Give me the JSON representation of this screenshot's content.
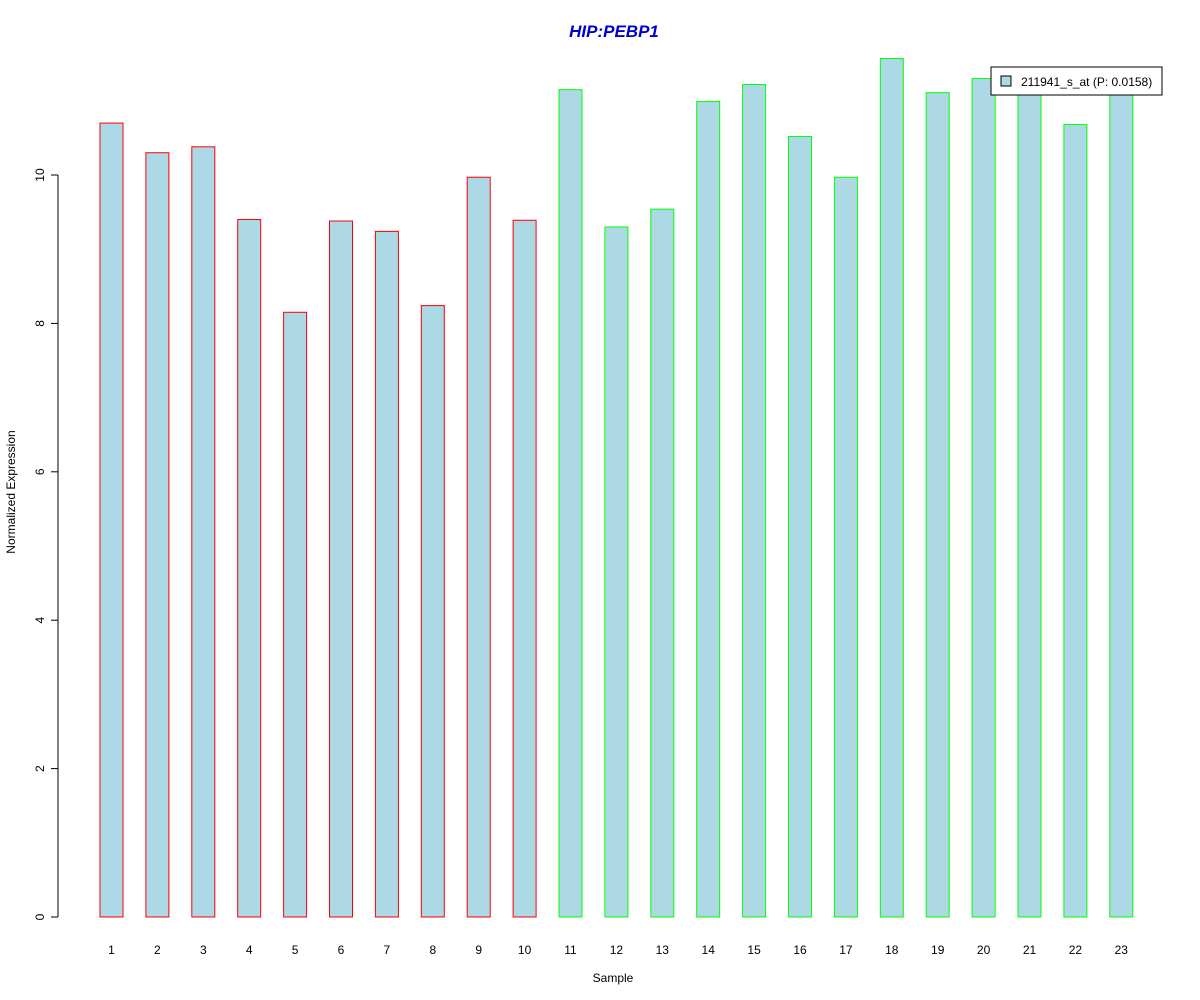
{
  "chart_data": {
    "type": "bar",
    "title": "HIP:PEBP1",
    "xlabel": "Sample",
    "ylabel": "Normalized Expression",
    "ylim": [
      0,
      11.6
    ],
    "yticks": [
      0,
      2,
      4,
      6,
      8,
      10
    ],
    "categories": [
      "1",
      "2",
      "3",
      "4",
      "5",
      "6",
      "7",
      "8",
      "9",
      "10",
      "11",
      "12",
      "13",
      "14",
      "15",
      "16",
      "17",
      "18",
      "19",
      "20",
      "21",
      "22",
      "23"
    ],
    "series": [
      {
        "name": "211941_s_at (P: 0.0158)",
        "values": [
          10.7,
          10.3,
          10.38,
          9.4,
          8.15,
          9.38,
          9.24,
          8.24,
          9.97,
          9.39,
          11.15,
          9.3,
          9.54,
          10.99,
          11.22,
          10.52,
          9.97,
          11.57,
          11.11,
          11.3,
          11.1,
          10.68,
          11.13
        ]
      }
    ],
    "fill_color": "#add8e6",
    "group_border_colors": [
      "#ff0000",
      "#ff0000",
      "#ff0000",
      "#ff0000",
      "#ff0000",
      "#ff0000",
      "#ff0000",
      "#ff0000",
      "#ff0000",
      "#ff0000",
      "#00ff00",
      "#00ff00",
      "#00ff00",
      "#00ff00",
      "#00ff00",
      "#00ff00",
      "#00ff00",
      "#00ff00",
      "#00ff00",
      "#00ff00",
      "#00ff00",
      "#00ff00",
      "#00ff00"
    ],
    "title_color": "#0000cd",
    "legend_position": "top-right",
    "grid": false
  }
}
